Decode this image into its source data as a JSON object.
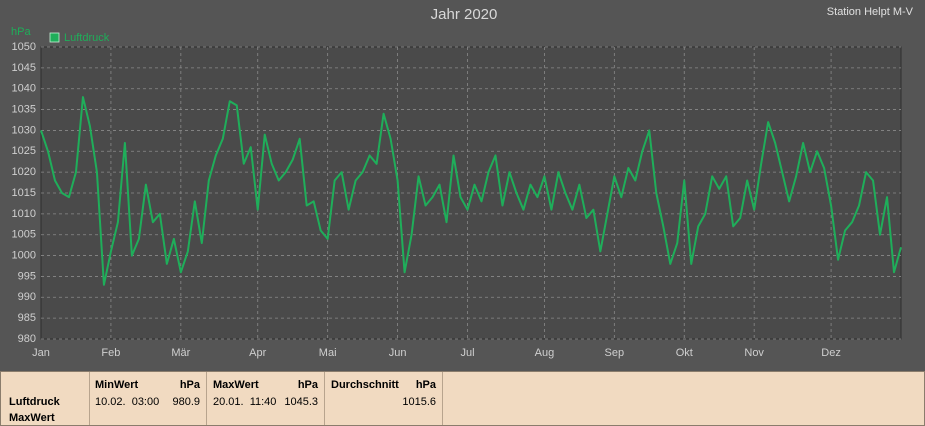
{
  "chart_data": {
    "type": "line",
    "title": "Jahr 2020",
    "subtitle": "Station Helpt M-V",
    "y_label": "hPa",
    "categories": [
      "Jan",
      null,
      null,
      null,
      null,
      null,
      null,
      null,
      null,
      null,
      "Feb",
      null,
      null,
      null,
      null,
      null,
      null,
      null,
      null,
      null,
      "Mär",
      null,
      null,
      null,
      null,
      null,
      null,
      null,
      null,
      null,
      null,
      "Apr",
      null,
      null,
      null,
      null,
      null,
      null,
      null,
      null,
      null,
      "Mai",
      null,
      null,
      null,
      null,
      null,
      null,
      null,
      null,
      null,
      "Jun",
      null,
      null,
      null,
      null,
      null,
      null,
      null,
      null,
      null,
      "Jul",
      null,
      null,
      null,
      null,
      null,
      null,
      null,
      null,
      null,
      null,
      "Aug",
      null,
      null,
      null,
      null,
      null,
      null,
      null,
      null,
      null,
      "Sep",
      null,
      null,
      null,
      null,
      null,
      null,
      null,
      null,
      null,
      "Okt",
      null,
      null,
      null,
      null,
      null,
      null,
      null,
      null,
      null,
      "Nov",
      null,
      null,
      null,
      null,
      null,
      null,
      null,
      null,
      null,
      null,
      "Dez",
      null,
      null,
      null,
      null,
      null,
      null,
      null,
      null,
      null,
      null
    ],
    "series": [
      {
        "name": "Luftdruck",
        "color": "#1fae5a",
        "values": [
          1030,
          1025,
          1018,
          1015,
          1014,
          1020,
          1038,
          1031,
          1020,
          993,
          1001,
          1008,
          1027,
          1000,
          1004,
          1017,
          1008,
          1010,
          998,
          1004,
          996,
          1001,
          1013,
          1003,
          1018,
          1024,
          1028,
          1037,
          1036,
          1022,
          1026,
          1011,
          1029,
          1022,
          1018,
          1020,
          1023,
          1028,
          1012,
          1013,
          1006,
          1004,
          1018,
          1020,
          1011,
          1018,
          1020,
          1024,
          1022,
          1034,
          1028,
          1018,
          996,
          1005,
          1019,
          1012,
          1014,
          1017,
          1008,
          1024,
          1014,
          1011,
          1017,
          1013,
          1020,
          1024,
          1012,
          1020,
          1015,
          1011,
          1017,
          1014,
          1019,
          1011,
          1020,
          1015,
          1011,
          1017,
          1009,
          1011,
          1001,
          1010,
          1019,
          1014,
          1021,
          1018,
          1025,
          1030,
          1015,
          1007,
          998,
          1003,
          1018,
          998,
          1007,
          1010,
          1019,
          1016,
          1019,
          1007,
          1009,
          1018,
          1011,
          1022,
          1032,
          1027,
          1020,
          1013,
          1019,
          1027,
          1020,
          1025,
          1021,
          1012,
          999,
          1006,
          1008,
          1012,
          1020,
          1018,
          1005,
          1014,
          996,
          1002
        ]
      }
    ],
    "ylim": [
      980,
      1050
    ],
    "yticks": [
      980,
      985,
      990,
      995,
      1000,
      1005,
      1010,
      1015,
      1020,
      1025,
      1030,
      1035,
      1040,
      1045,
      1050
    ],
    "grid": true,
    "legend": "top-left"
  },
  "table": {
    "row_labels": [
      "Luftdruck",
      "MaxWert"
    ],
    "columns": [
      {
        "title": "MinWert",
        "unit": "hPa",
        "time": "10.02.  03:00",
        "value": 980.9
      },
      {
        "title": "MaxWert",
        "unit": "hPa",
        "time": "20.01.  11:40",
        "value": 1045.3
      },
      {
        "title": "Durchschnitt",
        "unit": "hPa",
        "value": 1015.6
      }
    ]
  }
}
